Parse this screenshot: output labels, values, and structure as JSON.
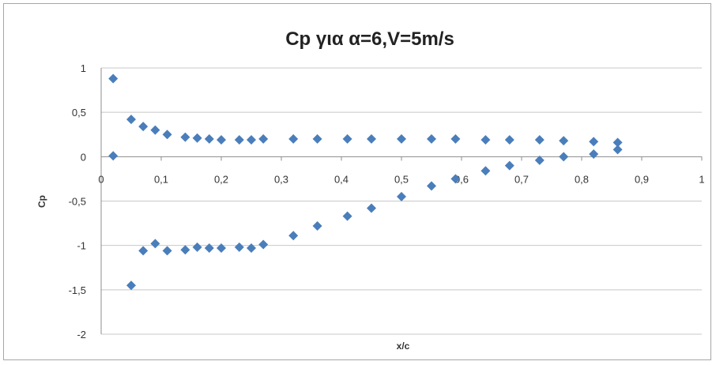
{
  "chart_data": {
    "type": "scatter",
    "title": "Cp για α=6,V=5m/s",
    "xlabel": "x/c",
    "ylabel": "Cp",
    "xlim": [
      0,
      1
    ],
    "ylim": [
      -2,
      1
    ],
    "x_ticks": [
      "0",
      "0,1",
      "0,2",
      "0,3",
      "0,4",
      "0,5",
      "0,6",
      "0,7",
      "0,8",
      "0,9",
      "1"
    ],
    "y_ticks": [
      "1",
      "0,5",
      "0",
      "-0,5",
      "-1",
      "-1,5",
      "-2"
    ],
    "grid": "horizontal",
    "legend": "none",
    "marker_color": "#4a7ebb",
    "marker": "diamond",
    "series": [
      {
        "points": [
          [
            0.02,
            0.88
          ],
          [
            0.02,
            0.01
          ],
          [
            0.05,
            0.42
          ],
          [
            0.07,
            0.34
          ],
          [
            0.09,
            0.3
          ],
          [
            0.11,
            0.25
          ],
          [
            0.14,
            0.22
          ],
          [
            0.16,
            0.21
          ],
          [
            0.18,
            0.2
          ],
          [
            0.2,
            0.19
          ],
          [
            0.23,
            0.19
          ],
          [
            0.25,
            0.19
          ],
          [
            0.27,
            0.2
          ],
          [
            0.32,
            0.2
          ],
          [
            0.36,
            0.2
          ],
          [
            0.41,
            0.2
          ],
          [
            0.45,
            0.2
          ],
          [
            0.5,
            0.2
          ],
          [
            0.55,
            0.2
          ],
          [
            0.59,
            0.2
          ],
          [
            0.64,
            0.19
          ],
          [
            0.68,
            0.19
          ],
          [
            0.73,
            0.19
          ],
          [
            0.77,
            0.18
          ],
          [
            0.82,
            0.17
          ],
          [
            0.86,
            0.16
          ],
          [
            0.05,
            -1.45
          ],
          [
            0.07,
            -1.06
          ],
          [
            0.09,
            -0.98
          ],
          [
            0.11,
            -1.06
          ],
          [
            0.14,
            -1.05
          ],
          [
            0.16,
            -1.02
          ],
          [
            0.18,
            -1.03
          ],
          [
            0.2,
            -1.03
          ],
          [
            0.23,
            -1.02
          ],
          [
            0.25,
            -1.03
          ],
          [
            0.27,
            -0.99
          ],
          [
            0.32,
            -0.89
          ],
          [
            0.36,
            -0.78
          ],
          [
            0.41,
            -0.67
          ],
          [
            0.45,
            -0.58
          ],
          [
            0.5,
            -0.45
          ],
          [
            0.55,
            -0.33
          ],
          [
            0.59,
            -0.25
          ],
          [
            0.64,
            -0.16
          ],
          [
            0.68,
            -0.1
          ],
          [
            0.73,
            -0.04
          ],
          [
            0.77,
            0.0
          ],
          [
            0.82,
            0.03
          ],
          [
            0.86,
            0.08
          ]
        ]
      }
    ]
  }
}
